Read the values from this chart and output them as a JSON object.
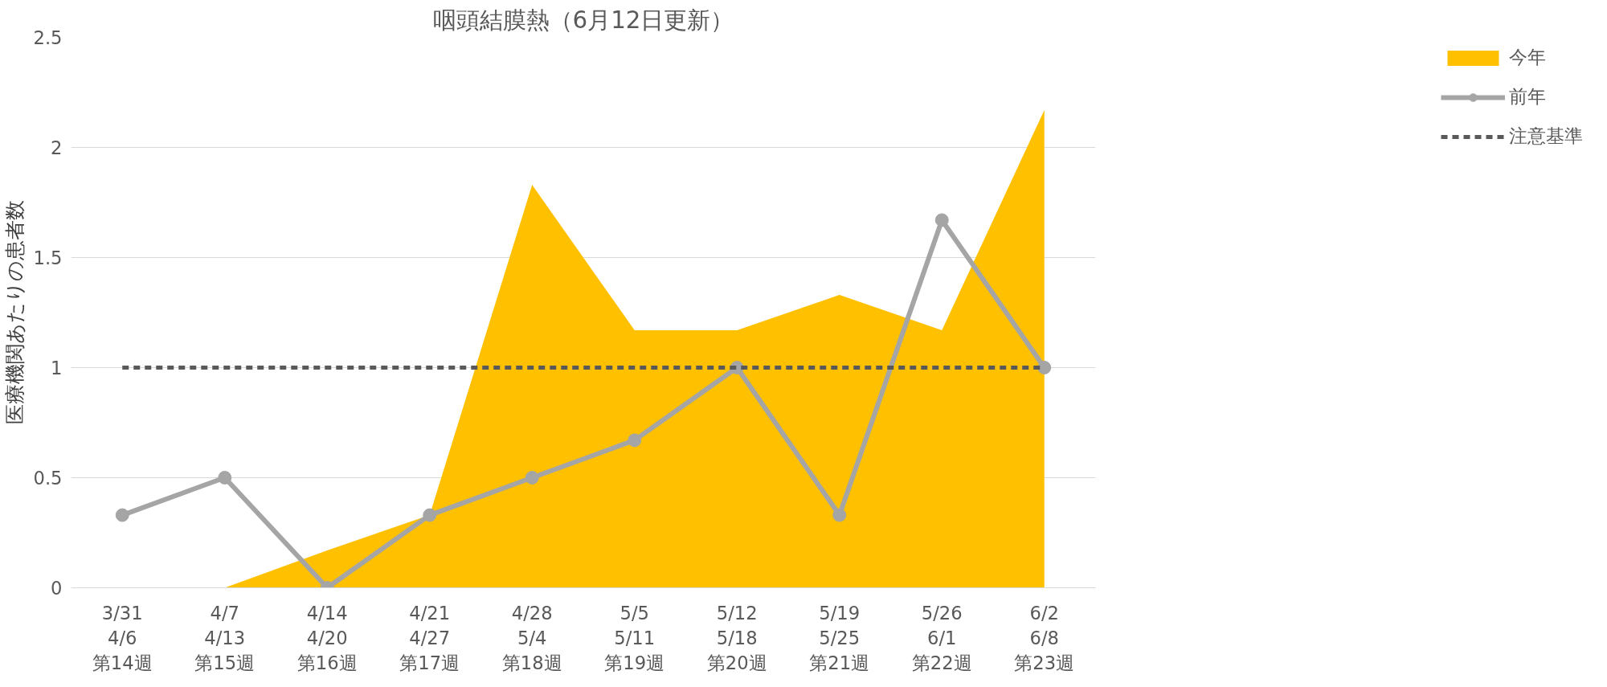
{
  "chart_data": {
    "type": "area",
    "title": "咽頭結膜熱（6月12日更新）",
    "ylabel": "医療機関あたりの患者数",
    "categories": [
      "3/31\n4/6\n第14週",
      "4/7\n4/13\n第15週",
      "4/14\n4/20\n第16週",
      "4/21\n4/27\n第17週",
      "4/28\n5/4\n第18週",
      "5/5\n5/11\n第19週",
      "5/12\n5/18\n第20週",
      "5/19\n5/25\n第21週",
      "5/26\n6/1\n第22週",
      "6/2\n6/8\n第23週"
    ],
    "series": [
      {
        "name": "今年",
        "color": "#ffc000",
        "values": [
          null,
          0,
          0.17,
          0.33,
          1.83,
          1.17,
          1.17,
          1.33,
          1.17,
          2.17
        ]
      },
      {
        "name": "前年",
        "type": "line",
        "color": "#a5a5a5",
        "marker": "circle",
        "values": [
          0.33,
          0.5,
          0,
          0.33,
          0.5,
          0.67,
          1,
          0.33,
          1.67,
          1
        ]
      }
    ],
    "ref_lines": [
      {
        "axis": "y",
        "value": 1,
        "label": "注意基準",
        "color": "#595959",
        "line_style": "dashed"
      }
    ],
    "ylim": [
      0,
      2.5
    ],
    "yticks": [
      0,
      0.5,
      1,
      1.5,
      2,
      2.5
    ],
    "grid": "y",
    "legend": "right"
  }
}
